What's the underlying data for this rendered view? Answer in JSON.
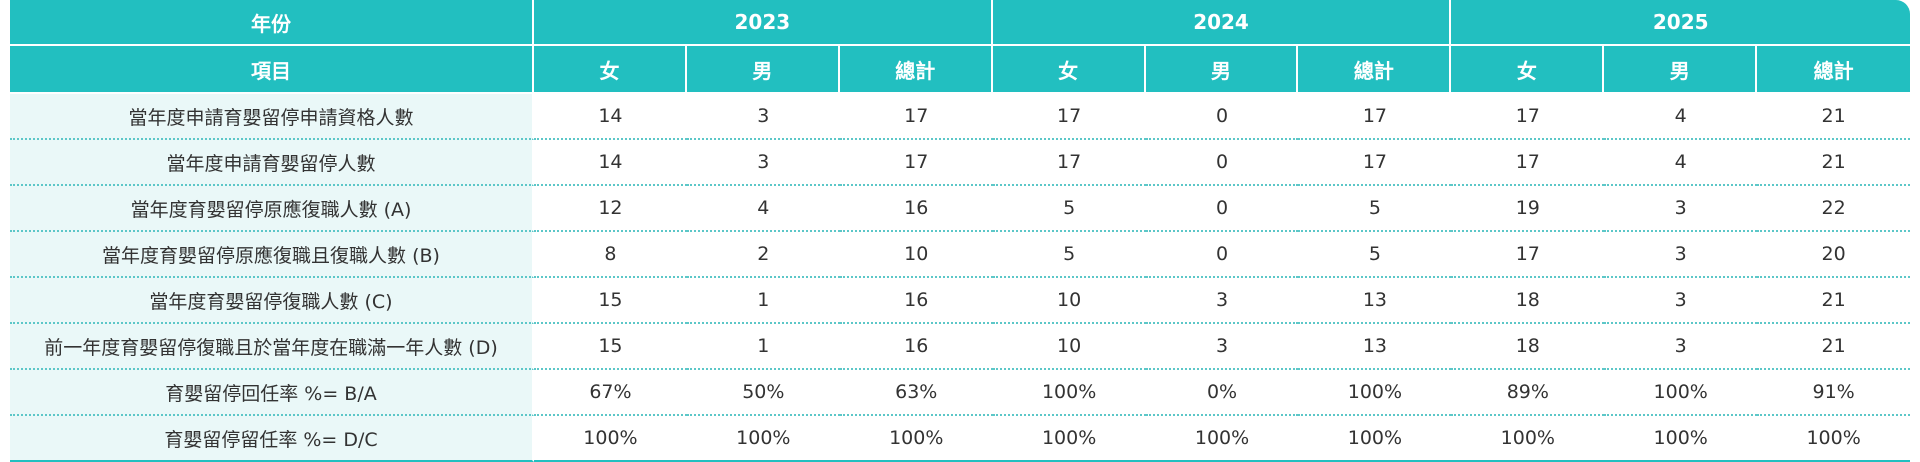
{
  "header": {
    "year_label": "年份",
    "item_label": "項目",
    "years": [
      "2023",
      "2024",
      "2025"
    ],
    "sub_columns": [
      "女",
      "男",
      "總計"
    ]
  },
  "rows": [
    {
      "label": "當年度申請育嬰留停申請資格人數",
      "values": [
        "14",
        "3",
        "17",
        "17",
        "0",
        "17",
        "17",
        "4",
        "21"
      ]
    },
    {
      "label": "當年度申請育嬰留停人數",
      "values": [
        "14",
        "3",
        "17",
        "17",
        "0",
        "17",
        "17",
        "4",
        "21"
      ]
    },
    {
      "label": "當年度育嬰留停原應復職人數 (A)",
      "values": [
        "12",
        "4",
        "16",
        "5",
        "0",
        "5",
        "19",
        "3",
        "22"
      ]
    },
    {
      "label": "當年度育嬰留停原應復職且復職人數 (B)",
      "values": [
        "8",
        "2",
        "10",
        "5",
        "0",
        "5",
        "17",
        "3",
        "20"
      ]
    },
    {
      "label": "當年度育嬰留停復職人數 (C)",
      "values": [
        "15",
        "1",
        "16",
        "10",
        "3",
        "13",
        "18",
        "3",
        "21"
      ]
    },
    {
      "label": "前一年度育嬰留停復職且於當年度在職滿一年人數 (D)",
      "values": [
        "15",
        "1",
        "16",
        "10",
        "3",
        "13",
        "18",
        "3",
        "21"
      ]
    },
    {
      "label": "育嬰留停回任率 %= B/A",
      "values": [
        "67%",
        "50%",
        "63%",
        "100%",
        "0%",
        "100%",
        "89%",
        "100%",
        "91%"
      ]
    },
    {
      "label": "育嬰留停留任率 %= D/C",
      "values": [
        "100%",
        "100%",
        "100%",
        "100%",
        "100%",
        "100%",
        "100%",
        "100%",
        "100%"
      ]
    }
  ],
  "colors": {
    "header_bg": "#22bfc0",
    "label_bg": "#eaf8f8",
    "divider": "#5cc7c8"
  }
}
